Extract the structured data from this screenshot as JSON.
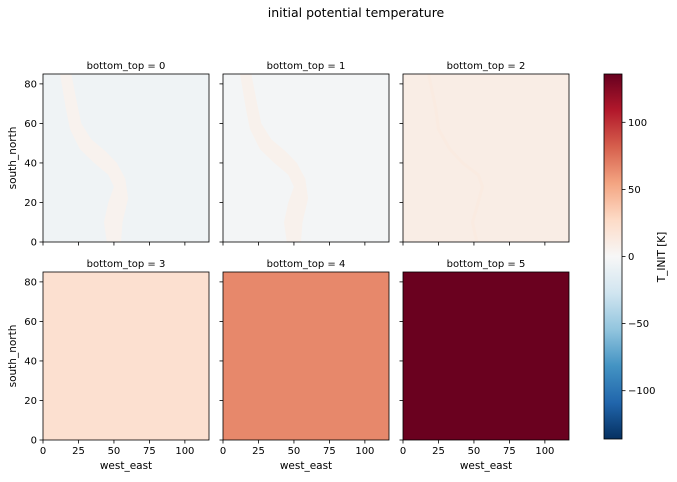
{
  "chart_data": {
    "type": "heatmap",
    "title": "initial potential temperature",
    "x_label": "west_east",
    "y_label": "south_north",
    "x_ticks": [
      0,
      25,
      50,
      75,
      100
    ],
    "y_ticks": [
      0,
      20,
      40,
      60,
      80
    ],
    "x_range": [
      0,
      117
    ],
    "y_range": [
      0,
      85
    ],
    "colormap": "RdBu_r",
    "colorbar": {
      "label": "T_INIT [K]",
      "range": [
        -136,
        136
      ],
      "ticks": [
        -100,
        -50,
        0,
        50,
        100
      ],
      "tick_labels": [
        "−100",
        "−50",
        "0",
        "50",
        "100"
      ]
    },
    "panels": [
      {
        "title": "bottom_top = 0",
        "base_value": -6,
        "feature_value": 5
      },
      {
        "title": "bottom_top = 1",
        "base_value": -3,
        "feature_value": 6
      },
      {
        "title": "bottom_top = 2",
        "base_value": 10,
        "feature_value": 14
      },
      {
        "title": "bottom_top = 3",
        "base_value": 22
      },
      {
        "title": "bottom_top = 4",
        "base_value": 66
      },
      {
        "title": "bottom_top = 5",
        "base_value": 135
      }
    ],
    "colors": {
      "cmap_stops": [
        "#053061",
        "#2166ac",
        "#4393c3",
        "#92c5de",
        "#d1e5f0",
        "#f7f7f7",
        "#fddbc7",
        "#f4a582",
        "#d6604d",
        "#b2182b",
        "#67001f"
      ]
    }
  }
}
